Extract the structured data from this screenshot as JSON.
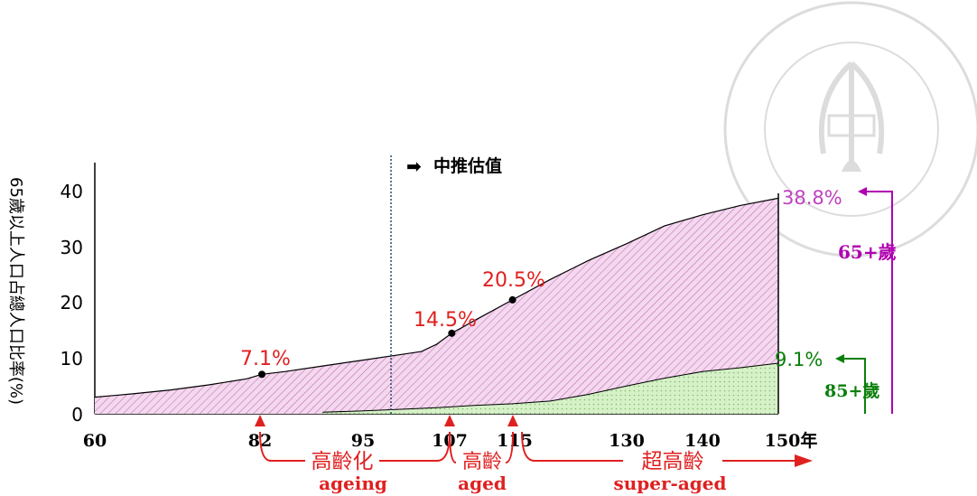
{
  "chart_data": {
    "type": "area",
    "ylabel": "65歲以上人口占總人口比率(%)",
    "ylim": [
      0,
      45
    ],
    "yticks": [
      "0",
      "10",
      "20",
      "30",
      "40"
    ],
    "xlim": [
      60,
      150
    ],
    "xticks": [
      "60",
      "82",
      "95",
      "107",
      "115",
      "130",
      "140",
      "150年"
    ],
    "series": [
      {
        "name": "65+歲",
        "color": "#b000b0",
        "x": [
          60,
          65,
          70,
          75,
          80,
          82,
          85,
          90,
          95,
          100,
          103,
          105,
          107,
          110,
          115,
          120,
          125,
          130,
          135,
          140,
          145,
          150
        ],
        "y": [
          3.0,
          3.6,
          4.3,
          5.2,
          6.3,
          7.1,
          7.6,
          8.6,
          9.6,
          10.6,
          11.2,
          12.5,
          14.5,
          16.8,
          20.5,
          24.2,
          27.6,
          30.6,
          33.8,
          35.8,
          37.5,
          38.8
        ]
      },
      {
        "name": "85+歲",
        "color": "#0a7f0a",
        "x": [
          90,
          95,
          100,
          105,
          110,
          115,
          120,
          125,
          130,
          135,
          140,
          145,
          150
        ],
        "y": [
          0.3,
          0.5,
          0.8,
          1.1,
          1.5,
          1.8,
          2.3,
          3.5,
          5.0,
          6.4,
          7.6,
          8.3,
          9.1
        ]
      }
    ],
    "points": [
      {
        "x": 82,
        "y": 7.1,
        "label": "7.1%"
      },
      {
        "x": 107,
        "y": 14.5,
        "label": "14.5%"
      },
      {
        "x": 115,
        "y": 20.5,
        "label": "20.5%"
      }
    ],
    "end_labels": {
      "total": "38.8%",
      "old": "9.1%"
    },
    "legend": {
      "total": "65+歲",
      "old": "85+歲"
    },
    "estimate_marker": {
      "x": 99,
      "label": "中推估值"
    },
    "stages": [
      {
        "zh": "高齡化",
        "en": "ageing",
        "start": 82,
        "end": 107
      },
      {
        "zh": "高齡",
        "en": "aged",
        "start": 107,
        "end": 115
      },
      {
        "zh": "超高齡",
        "en": "super-aged",
        "start": 115,
        "end": 150
      }
    ],
    "colors": {
      "total_fill": "#f3d8ee",
      "total_hatch": "#c05fb0",
      "old_fill": "#d6f0c8",
      "old_hatch": "#7fbf6a",
      "stage": "#e02020",
      "pct_label": "#e02020"
    }
  }
}
